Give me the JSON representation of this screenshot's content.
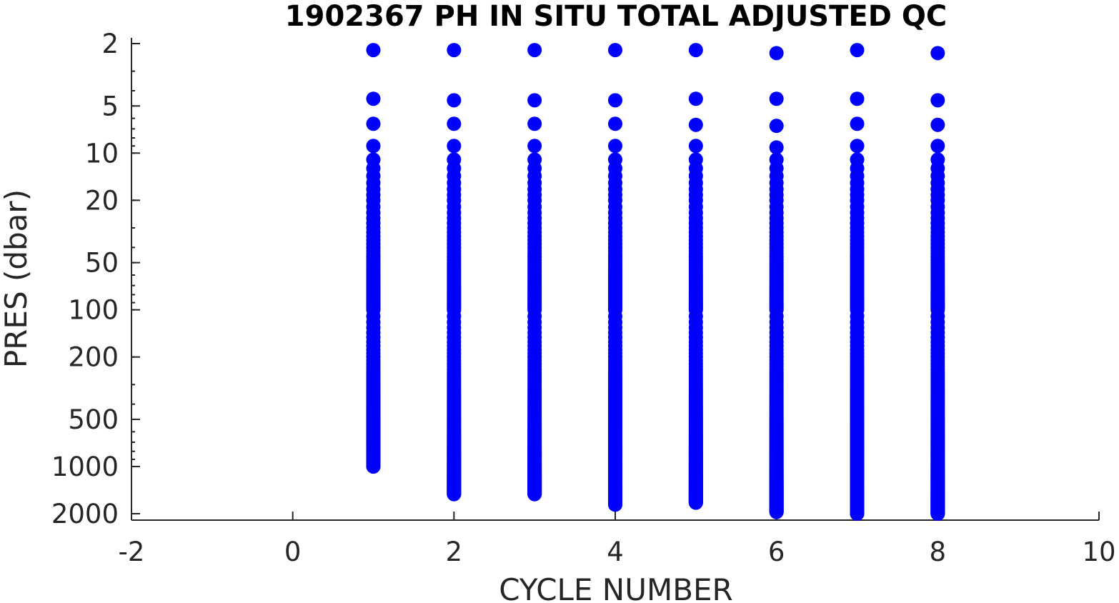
{
  "chart_data": {
    "type": "scatter",
    "title": "1902367  PH IN SITU TOTAL ADJUSTED QC",
    "xlabel": "CYCLE NUMBER",
    "ylabel": "PRES (dbar)",
    "xlim": [
      -2,
      10
    ],
    "ylim": [
      2000,
      2
    ],
    "y_scale": "log",
    "y_reversed": true,
    "x_ticks": [
      -2,
      0,
      2,
      4,
      6,
      8,
      10
    ],
    "x_tick_labels": [
      "-2",
      "0",
      "2",
      "4",
      "6",
      "8",
      "10"
    ],
    "y_ticks": [
      2,
      5,
      10,
      20,
      50,
      100,
      200,
      500,
      1000,
      2000
    ],
    "y_tick_labels": [
      "2",
      "5",
      "10",
      "20",
      "50",
      "100",
      "200",
      "500",
      "1000",
      "2000"
    ],
    "grid": false,
    "marker_color": "#0000ff",
    "series": [
      {
        "profiles": [
          {
            "cycle": 1,
            "top_pres": [
              2.2,
              4.5,
              6.5,
              9.0
            ],
            "continuous_from": 11,
            "max_pres": 1000
          },
          {
            "cycle": 2,
            "top_pres": [
              2.2,
              4.6,
              6.5,
              9.0
            ],
            "continuous_from": 11,
            "max_pres": 1500
          },
          {
            "cycle": 3,
            "top_pres": [
              2.2,
              4.6,
              6.5,
              9.0
            ],
            "continuous_from": 11,
            "max_pres": 1500
          },
          {
            "cycle": 4,
            "top_pres": [
              2.2,
              4.6,
              6.5,
              9.0
            ],
            "continuous_from": 11,
            "max_pres": 1750
          },
          {
            "cycle": 5,
            "top_pres": [
              2.2,
              4.5,
              6.6,
              9.0
            ],
            "continuous_from": 11,
            "max_pres": 1700
          },
          {
            "cycle": 6,
            "top_pres": [
              2.3,
              4.5,
              6.7,
              9.2
            ],
            "continuous_from": 11,
            "max_pres": 1950
          },
          {
            "cycle": 7,
            "top_pres": [
              2.2,
              4.5,
              6.5,
              9.0
            ],
            "continuous_from": 11,
            "max_pres": 2000
          },
          {
            "cycle": 8,
            "top_pres": [
              2.3,
              4.6,
              6.6,
              9.0
            ],
            "continuous_from": 11,
            "max_pres": 2000
          }
        ]
      }
    ]
  }
}
